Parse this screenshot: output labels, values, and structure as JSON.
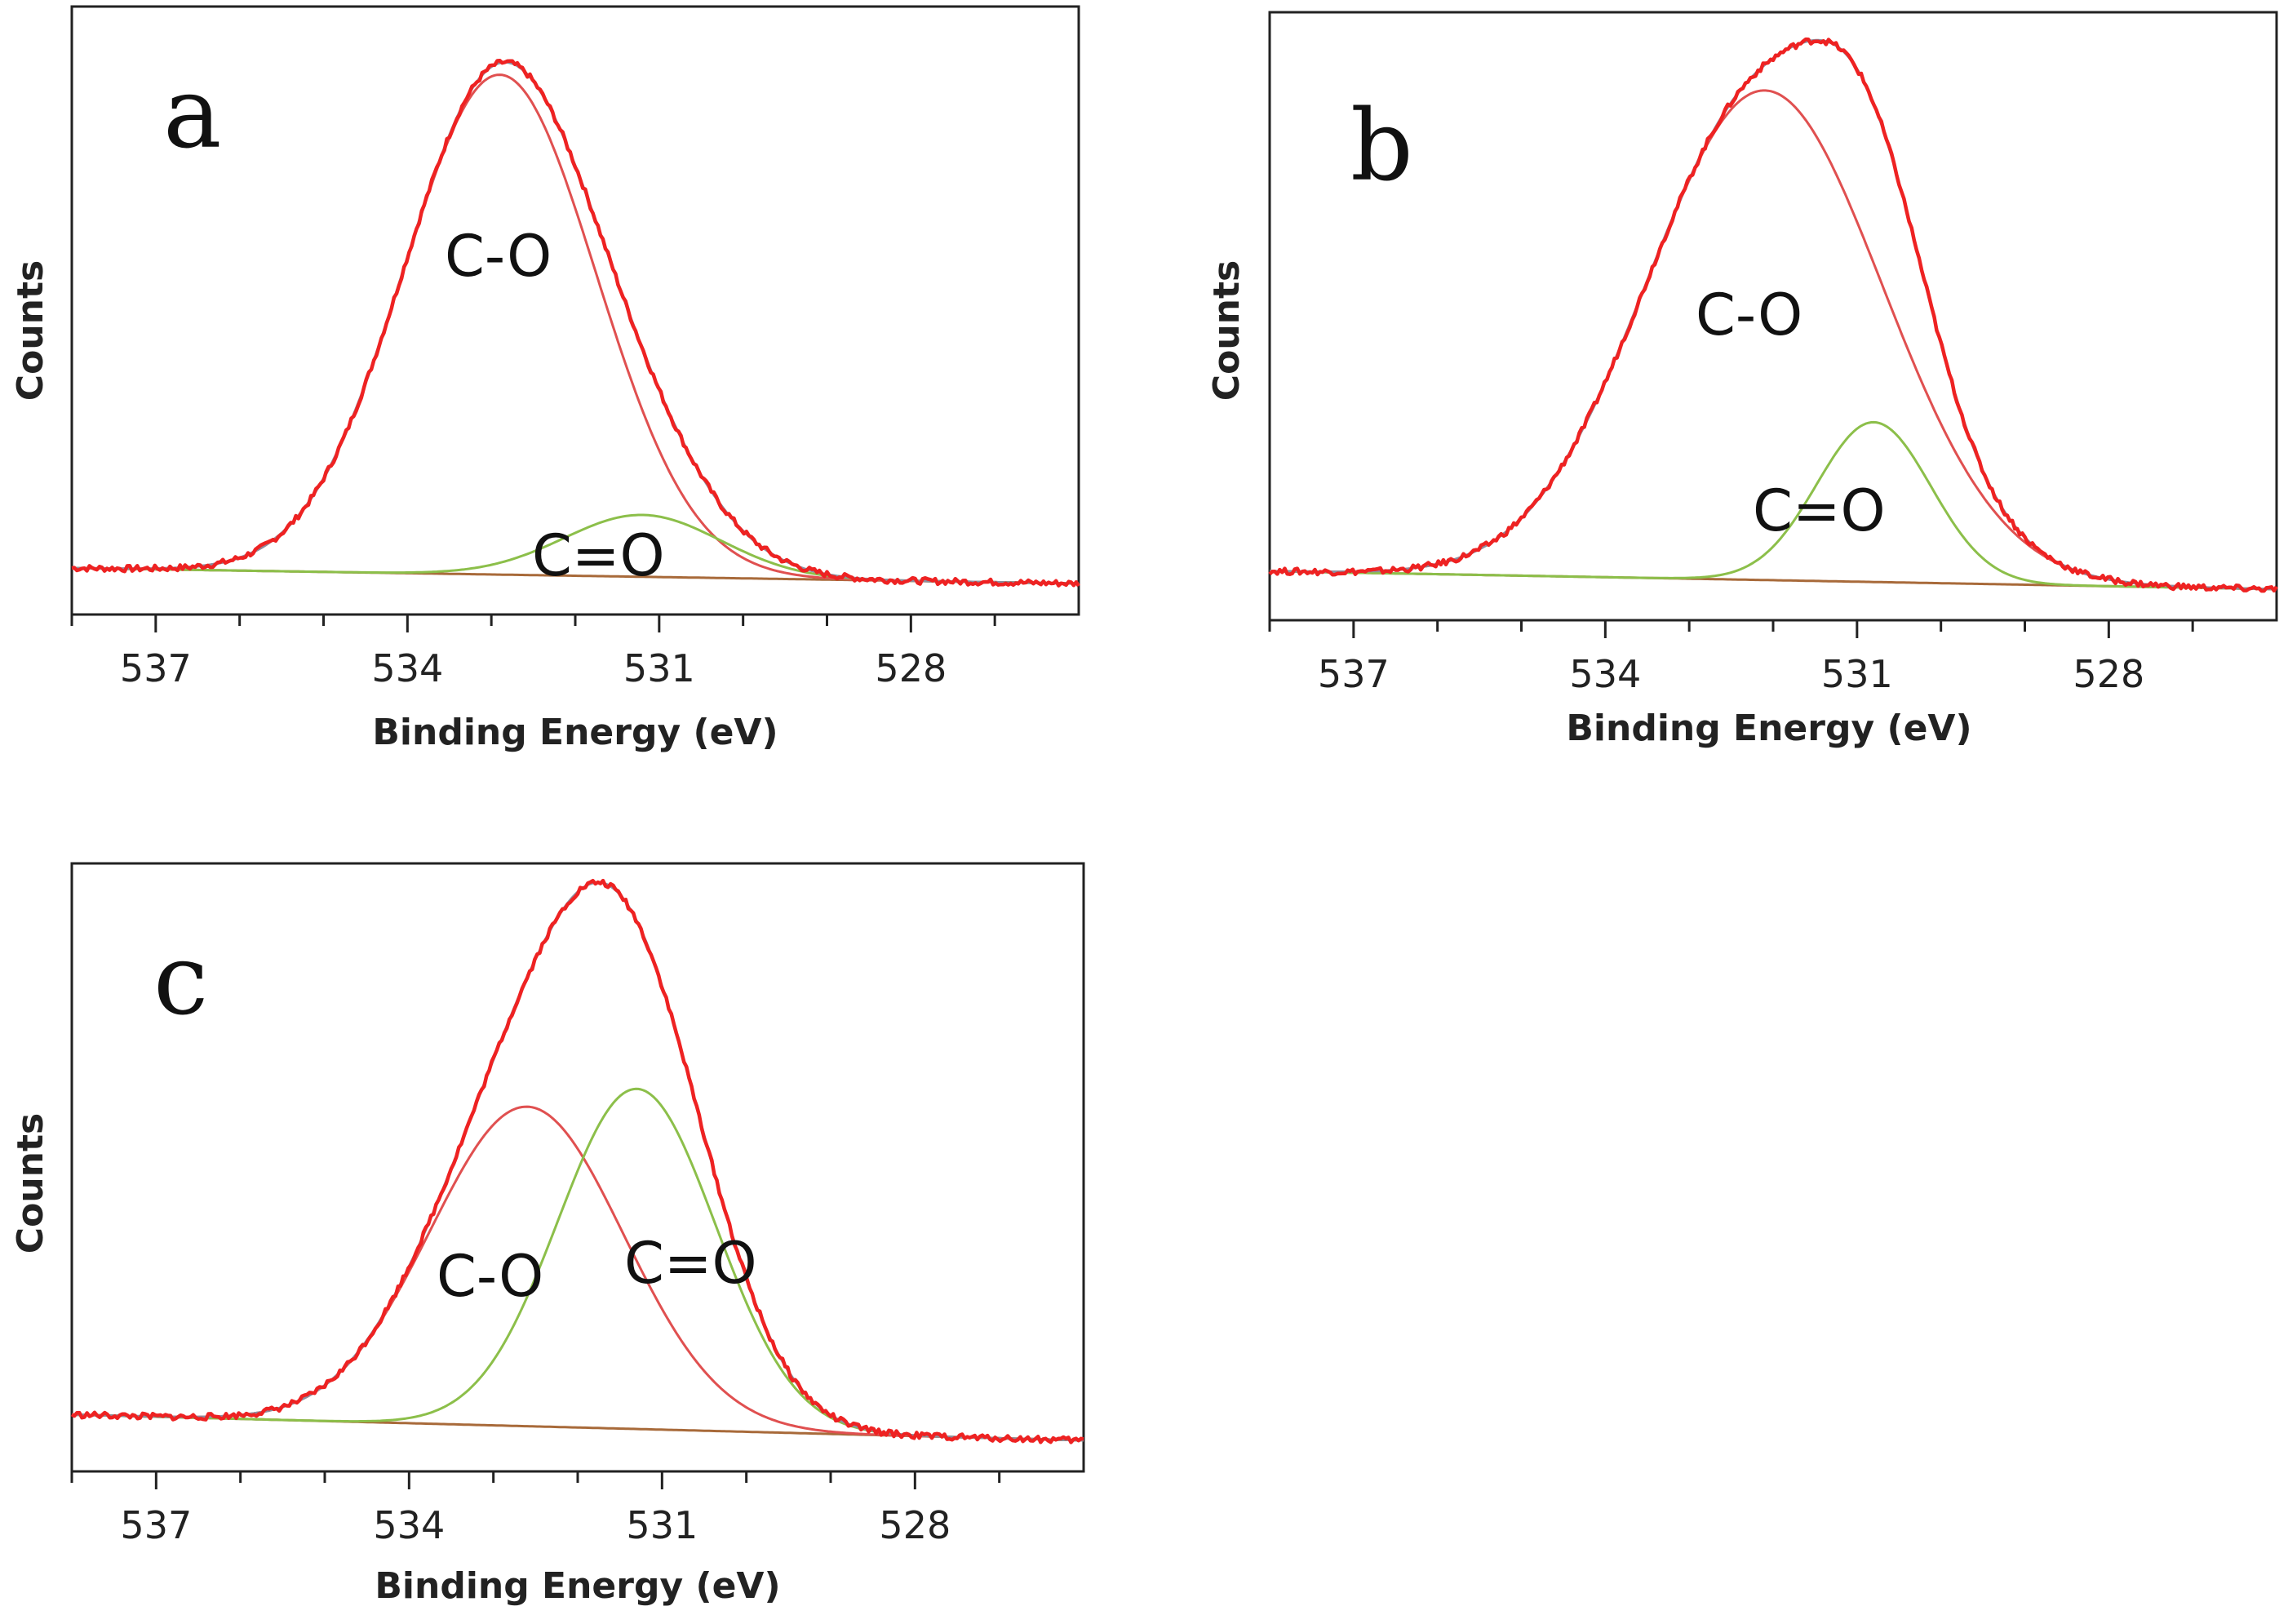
{
  "chart_data": [
    {
      "type": "line",
      "panel_label": "a",
      "xlabel": "Binding Energy (eV)",
      "ylabel": "Counts",
      "xlim": [
        538,
        526
      ],
      "x_ticks": [
        "537",
        "534",
        "531",
        "528"
      ],
      "x_tick_values": [
        537,
        534,
        531,
        528
      ],
      "annotations": [
        "C-O",
        "C=O"
      ],
      "series": [
        {
          "name": "C-O",
          "color": "#e05050",
          "center": 532.9,
          "height": 0.97,
          "fwhm": 2.7
        },
        {
          "name": "C=O",
          "color": "#8cbf4a",
          "center": 531.2,
          "height": 0.12,
          "fwhm": 2.2
        },
        {
          "name": "Background",
          "color": "#a86a3a",
          "start": 0.03,
          "end": 0.0
        }
      ],
      "ylim": [
        0,
        1.08
      ]
    },
    {
      "type": "line",
      "panel_label": "b",
      "xlabel": "Binding Energy (eV)",
      "ylabel": "Counts",
      "xlim": [
        538,
        526
      ],
      "x_ticks": [
        "537",
        "534",
        "531",
        "528"
      ],
      "x_tick_values": [
        537,
        534,
        531,
        528
      ],
      "annotations": [
        "C-O",
        "C=O"
      ],
      "series": [
        {
          "name": "C-O",
          "color": "#e05050",
          "center": 532.1,
          "height": 0.95,
          "fwhm": 3.3
        },
        {
          "name": "C=O",
          "color": "#8cbf4a",
          "center": 530.8,
          "height": 0.31,
          "fwhm": 1.6
        },
        {
          "name": "Background",
          "color": "#a86a3a",
          "start": 0.035,
          "end": 0.0
        }
      ],
      "ylim": [
        0,
        1.08
      ]
    },
    {
      "type": "line",
      "panel_label": "c",
      "xlabel": "Binding Energy (eV)",
      "ylabel": "Counts",
      "xlim": [
        538,
        526
      ],
      "x_ticks": [
        "537",
        "534",
        "531",
        "528"
      ],
      "x_tick_values": [
        537,
        534,
        531,
        528
      ],
      "annotations": [
        "C-O",
        "C=O"
      ],
      "series": [
        {
          "name": "C-O",
          "color": "#e05050",
          "center": 532.6,
          "height": 0.62,
          "fwhm": 2.7
        },
        {
          "name": "C=O",
          "color": "#8cbf4a",
          "center": 531.3,
          "height": 0.66,
          "fwhm": 2.2
        },
        {
          "name": "Background",
          "color": "#a86a3a",
          "start": 0.05,
          "end": 0.0
        }
      ],
      "ylim": [
        0,
        1.08
      ]
    }
  ]
}
